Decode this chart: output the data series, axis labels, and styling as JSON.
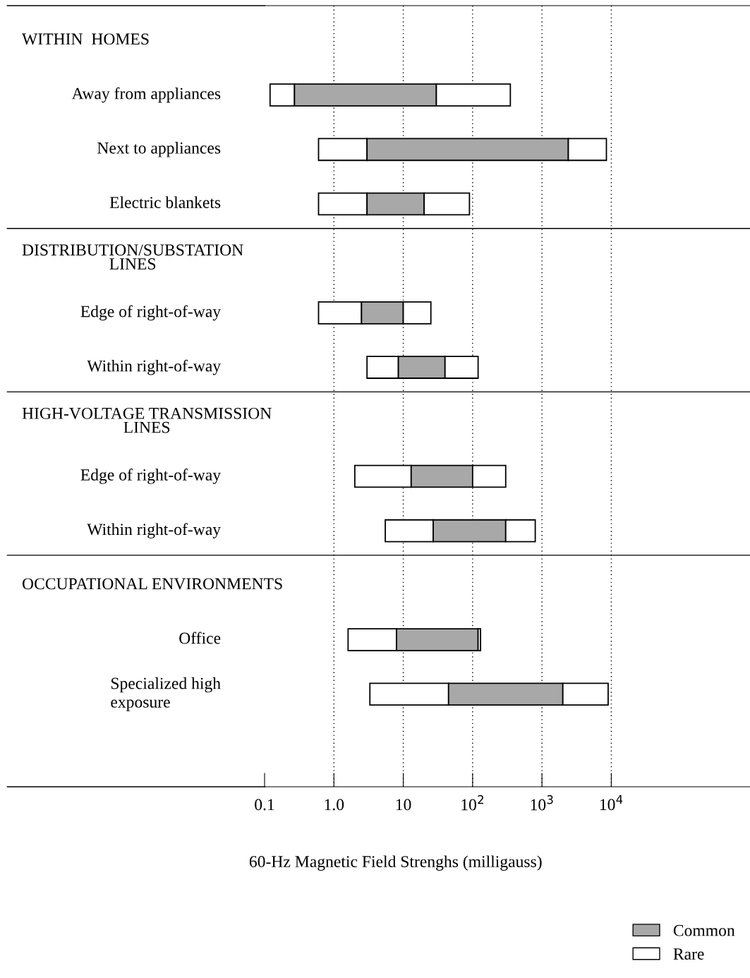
{
  "chart_data": {
    "type": "bar",
    "orientation": "horizontal",
    "log": "x",
    "xlabel": "60-Hz Magnetic Field Strenghs (milligauss)",
    "categories": [
      null,
      "Away from appliances",
      "Next to appliances",
      "Electric blankets",
      null,
      "Edge of right-of-way",
      "Within right-of-way",
      null,
      "Edge of right-of-way",
      "Within right-of-way",
      null,
      "Office",
      "Specialized high\nexposure"
    ],
    "annotations": [
      "WITHIN  HOMES",
      "DISTRIBUTION/SUBSTATION\nLINES",
      "HIGH-VOLTAGE TRANSMISSION\nLINES",
      "OCCUPATIONAL ENVIRONMENTS"
    ],
    "series": [
      {
        "name": "Rare",
        "color": "#ffffff",
        "base": [
          null,
          0.12,
          0.6,
          0.6,
          null,
          0.6,
          3,
          null,
          2,
          5.5,
          null,
          1.6,
          3.3
        ],
        "values": [
          null,
          0.15,
          2.4,
          2.4,
          null,
          1.9,
          5.5,
          null,
          11,
          21.5,
          null,
          6.4,
          41.7
        ]
      },
      {
        "name": "Common",
        "color": "#a8a8a8",
        "base": [
          null,
          0.27,
          3,
          3,
          null,
          2.5,
          8.5,
          null,
          13,
          27,
          null,
          8,
          45
        ],
        "values": [
          null,
          29.73,
          2397,
          17,
          null,
          7.5,
          31.5,
          null,
          87,
          273,
          null,
          112,
          1955
        ]
      },
      {
        "color": "#ffffff",
        "base": [
          null,
          30,
          2400,
          20,
          null,
          10,
          40,
          null,
          100,
          300,
          null,
          120,
          2000
        ],
        "values": [
          null,
          320,
          6100,
          70,
          null,
          15,
          80,
          null,
          200,
          500,
          null,
          10,
          7000
        ]
      }
    ],
    "xlim": [
      0.1,
      1000000
    ],
    "xticks": [
      0.1,
      "1.0",
      10,
      {
        "value": 100,
        "label": "10$^{2}$"
      },
      {
        "value": 1000,
        "label": "10$^{3}$"
      },
      {
        "value": 10000,
        "label": "10$^{4}$"
      }
    ],
    "grid": "x",
    "legend": "bottom right"
  }
}
